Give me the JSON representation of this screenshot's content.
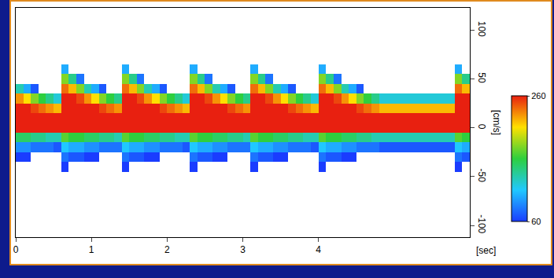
{
  "chart_data": {
    "type": "heatmap",
    "x_label": "[sec]",
    "y_label": "[cm/s]",
    "xlim": [
      0,
      6
    ],
    "xticks": [
      0,
      1,
      2,
      3,
      4
    ],
    "ylim": [
      -112,
      123
    ],
    "yticks": [
      -100,
      -50,
      0,
      50,
      100
    ],
    "grid": false,
    "colorbar": {
      "range": [
        60,
        260
      ],
      "ticks": [
        60,
        260
      ]
    },
    "x": [
      0.05,
      0.15,
      0.25,
      0.35,
      0.45,
      0.55,
      0.65,
      0.75,
      0.85,
      0.95,
      1.05,
      1.15,
      1.25,
      1.35,
      1.45,
      1.55,
      1.65,
      1.75,
      1.85,
      1.95,
      2.05,
      2.15,
      2.25,
      2.35,
      2.45,
      2.55,
      2.65,
      2.75,
      2.85,
      2.95,
      3.05,
      3.15,
      3.25,
      3.35,
      3.45,
      3.55,
      3.65,
      3.75,
      3.85,
      3.95,
      4.05,
      4.15,
      4.25,
      4.35,
      4.45,
      4.55,
      4.65,
      4.75,
      4.85,
      4.95,
      5.05,
      5.15,
      5.25,
      5.35,
      5.45,
      5.55,
      5.65,
      5.75,
      5.85,
      5.95
    ],
    "y": [
      -50,
      -40,
      -30,
      -20,
      -10,
      0,
      10,
      20,
      30,
      40,
      50,
      60
    ],
    "cells": [
      [
        null,
        null,
        60,
        90,
        150,
        260,
        260,
        260,
        230,
        130,
        null,
        null
      ],
      [
        null,
        null,
        60,
        90,
        150,
        260,
        260,
        260,
        210,
        100,
        null,
        null
      ],
      [
        null,
        null,
        null,
        80,
        140,
        260,
        260,
        250,
        180,
        70,
        null,
        null
      ],
      [
        null,
        null,
        null,
        80,
        140,
        260,
        260,
        240,
        160,
        null,
        null,
        null
      ],
      [
        null,
        null,
        null,
        80,
        130,
        260,
        260,
        230,
        140,
        null,
        null,
        null
      ],
      [
        null,
        null,
        null,
        70,
        130,
        260,
        260,
        220,
        120,
        null,
        null,
        null
      ],
      [
        null,
        60,
        80,
        110,
        170,
        260,
        260,
        260,
        260,
        240,
        180,
        100
      ],
      [
        null,
        null,
        70,
        100,
        160,
        260,
        260,
        260,
        260,
        220,
        140,
        null
      ],
      [
        null,
        null,
        70,
        100,
        160,
        260,
        260,
        260,
        250,
        180,
        80,
        null
      ],
      [
        null,
        null,
        60,
        90,
        150,
        260,
        260,
        260,
        230,
        130,
        null,
        null
      ],
      [
        null,
        null,
        60,
        90,
        150,
        260,
        260,
        260,
        210,
        100,
        null,
        null
      ],
      [
        null,
        null,
        null,
        80,
        140,
        260,
        260,
        250,
        180,
        70,
        null,
        null
      ],
      [
        null,
        null,
        null,
        80,
        140,
        260,
        260,
        240,
        160,
        null,
        null,
        null
      ],
      [
        null,
        null,
        null,
        80,
        130,
        260,
        260,
        230,
        140,
        null,
        null,
        null
      ],
      [
        null,
        60,
        80,
        110,
        170,
        260,
        260,
        260,
        260,
        240,
        180,
        100
      ],
      [
        null,
        null,
        70,
        100,
        160,
        260,
        260,
        260,
        260,
        220,
        140,
        null
      ],
      [
        null,
        null,
        70,
        100,
        160,
        260,
        260,
        260,
        250,
        180,
        80,
        null
      ],
      [
        null,
        null,
        60,
        90,
        150,
        260,
        260,
        260,
        230,
        130,
        null,
        null
      ],
      [
        null,
        null,
        60,
        90,
        150,
        260,
        260,
        260,
        210,
        100,
        null,
        null
      ],
      [
        null,
        null,
        null,
        80,
        140,
        260,
        260,
        250,
        180,
        70,
        null,
        null
      ],
      [
        null,
        null,
        null,
        80,
        140,
        260,
        260,
        240,
        160,
        null,
        null,
        null
      ],
      [
        null,
        null,
        null,
        80,
        130,
        260,
        260,
        230,
        140,
        null,
        null,
        null
      ],
      [
        null,
        null,
        null,
        70,
        130,
        260,
        260,
        220,
        120,
        null,
        null,
        null
      ],
      [
        null,
        60,
        80,
        110,
        170,
        260,
        260,
        260,
        260,
        240,
        180,
        100
      ],
      [
        null,
        null,
        70,
        100,
        160,
        260,
        260,
        260,
        260,
        220,
        140,
        null
      ],
      [
        null,
        null,
        70,
        100,
        160,
        260,
        260,
        260,
        250,
        180,
        80,
        null
      ],
      [
        null,
        null,
        60,
        90,
        150,
        260,
        260,
        260,
        230,
        130,
        null,
        null
      ],
      [
        null,
        null,
        60,
        90,
        150,
        260,
        260,
        260,
        210,
        100,
        null,
        null
      ],
      [
        null,
        null,
        null,
        80,
        140,
        260,
        260,
        250,
        180,
        70,
        null,
        null
      ],
      [
        null,
        null,
        null,
        80,
        140,
        260,
        260,
        240,
        160,
        null,
        null,
        null
      ],
      [
        null,
        null,
        null,
        80,
        130,
        260,
        260,
        230,
        140,
        null,
        null,
        null
      ],
      [
        null,
        60,
        80,
        110,
        170,
        260,
        260,
        260,
        260,
        240,
        180,
        100
      ],
      [
        null,
        null,
        70,
        100,
        160,
        260,
        260,
        260,
        260,
        220,
        140,
        null
      ],
      [
        null,
        null,
        70,
        100,
        160,
        260,
        260,
        260,
        250,
        180,
        80,
        null
      ],
      [
        null,
        null,
        60,
        90,
        150,
        260,
        260,
        260,
        230,
        130,
        null,
        null
      ],
      [
        null,
        null,
        60,
        90,
        150,
        260,
        260,
        260,
        210,
        100,
        null,
        null
      ],
      [
        null,
        null,
        null,
        80,
        140,
        260,
        260,
        250,
        180,
        70,
        null,
        null
      ],
      [
        null,
        null,
        null,
        80,
        140,
        260,
        260,
        240,
        160,
        null,
        null,
        null
      ],
      [
        null,
        null,
        null,
        80,
        130,
        260,
        260,
        230,
        140,
        null,
        null,
        null
      ],
      [
        null,
        null,
        null,
        70,
        130,
        260,
        260,
        220,
        120,
        null,
        null,
        null
      ],
      [
        null,
        60,
        80,
        110,
        170,
        260,
        260,
        260,
        260,
        240,
        180,
        100
      ],
      [
        null,
        null,
        70,
        100,
        160,
        260,
        260,
        260,
        260,
        220,
        140,
        null
      ],
      [
        null,
        null,
        70,
        100,
        160,
        260,
        260,
        260,
        250,
        180,
        80,
        null
      ],
      [
        null,
        null,
        60,
        90,
        150,
        260,
        260,
        260,
        230,
        130,
        null,
        null
      ],
      [
        null,
        null,
        60,
        90,
        150,
        260,
        260,
        260,
        210,
        100,
        null,
        null
      ],
      [
        null,
        null,
        null,
        80,
        140,
        260,
        260,
        250,
        180,
        70,
        null,
        null
      ],
      [
        null,
        null,
        null,
        80,
        140,
        260,
        260,
        240,
        160,
        null,
        null,
        null
      ],
      [
        null,
        null,
        null,
        80,
        130,
        260,
        260,
        230,
        140,
        null,
        null,
        null
      ],
      [
        null,
        null,
        null,
        70,
        130,
        260,
        260,
        220,
        120,
        null,
        null,
        null
      ],
      [
        null,
        null,
        null,
        70,
        130,
        260,
        260,
        220,
        120,
        null,
        null,
        null
      ],
      [
        null,
        null,
        null,
        70,
        130,
        260,
        260,
        220,
        120,
        null,
        null,
        null
      ],
      [
        null,
        null,
        null,
        70,
        130,
        260,
        260,
        220,
        120,
        null,
        null,
        null
      ],
      [
        null,
        null,
        null,
        70,
        130,
        260,
        260,
        220,
        120,
        null,
        null,
        null
      ],
      [
        null,
        null,
        null,
        70,
        130,
        260,
        260,
        220,
        120,
        null,
        null,
        null
      ],
      [
        null,
        null,
        null,
        70,
        130,
        260,
        260,
        220,
        120,
        null,
        null,
        null
      ],
      [
        null,
        null,
        null,
        70,
        130,
        260,
        260,
        220,
        120,
        null,
        null,
        null
      ],
      [
        null,
        null,
        null,
        70,
        130,
        260,
        260,
        220,
        120,
        null,
        null,
        null
      ],
      [
        null,
        null,
        null,
        70,
        130,
        260,
        260,
        220,
        120,
        null,
        null,
        null
      ],
      [
        null,
        60,
        80,
        110,
        170,
        260,
        260,
        260,
        260,
        240,
        180,
        100
      ],
      [
        null,
        null,
        70,
        100,
        160,
        260,
        260,
        260,
        260,
        220,
        140,
        null
      ]
    ]
  }
}
